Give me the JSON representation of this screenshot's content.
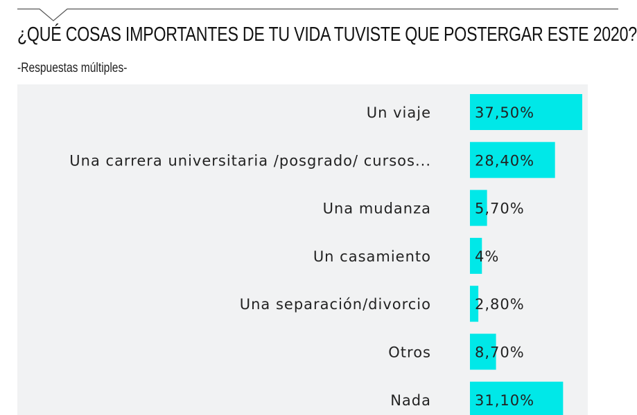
{
  "header": {
    "title": "¿QUÉ COSAS IMPORTANTES DE TU VIDA TUVISTE QUE POSTERGAR ESTE 2020?",
    "subtitle": "-Respuestas múltiples-"
  },
  "colors": {
    "bar": "#00e8e8",
    "panel": "#f1f2f3",
    "text": "#222222"
  },
  "chart_data": {
    "type": "bar",
    "orientation": "horizontal",
    "title": "¿QUÉ COSAS IMPORTANTES DE TU VIDA TUVISTE QUE POSTERGAR ESTE 2020?",
    "subtitle": "-Respuestas múltiples-",
    "categories": [
      "Un viaje",
      "Una carrera universitaria /posgrado/ cursos...",
      "Una mudanza",
      "Un casamiento",
      "Una separación/divorcio",
      "Otros",
      "Nada"
    ],
    "values": [
      37.5,
      28.4,
      5.7,
      4,
      2.8,
      8.7,
      31.1
    ],
    "labels": [
      "37,50%",
      "28,40%",
      "5,70%",
      "4%",
      "2,80%",
      "8,70%",
      "31,10%"
    ],
    "grid": false
  }
}
